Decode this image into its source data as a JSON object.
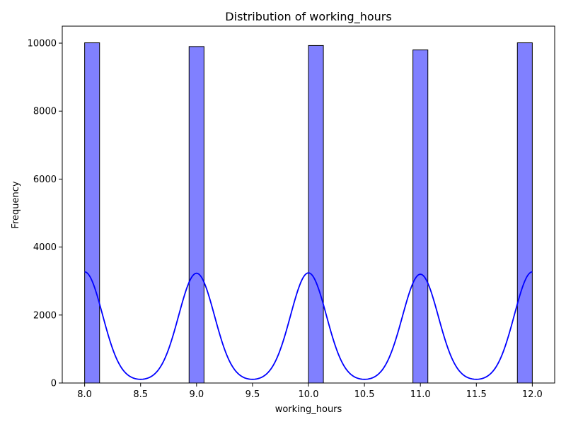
{
  "chart_data": {
    "type": "bar",
    "subtype": "histogram_with_kde",
    "title": "Distribution of working_hours",
    "xlabel": "working_hours",
    "ylabel": "Frequency",
    "xlim": [
      7.8,
      12.2
    ],
    "ylim": [
      0,
      10500
    ],
    "xticks": [
      8.0,
      8.5,
      9.0,
      9.5,
      10.0,
      10.5,
      11.0,
      11.5,
      12.0
    ],
    "xtick_labels": [
      "8.0",
      "8.5",
      "9.0",
      "9.5",
      "10.0",
      "10.5",
      "11.0",
      "11.5",
      "12.0"
    ],
    "yticks": [
      0,
      2000,
      4000,
      6000,
      8000,
      10000
    ],
    "ytick_labels": [
      "0",
      "2000",
      "4000",
      "6000",
      "8000",
      "10000"
    ],
    "bins": [
      {
        "x_start": 8.0,
        "x_end": 8.1333,
        "count": 10010
      },
      {
        "x_start": 8.9333,
        "x_end": 9.0667,
        "count": 9900
      },
      {
        "x_start": 10.0,
        "x_end": 10.1333,
        "count": 9930
      },
      {
        "x_start": 10.9333,
        "x_end": 11.0667,
        "count": 9800
      },
      {
        "x_start": 11.8667,
        "x_end": 12.0,
        "count": 10010
      }
    ],
    "kde": {
      "peaks": [
        {
          "x": 8.0,
          "y": 3270
        },
        {
          "x": 9.0,
          "y": 3230
        },
        {
          "x": 10.0,
          "y": 3240
        },
        {
          "x": 11.0,
          "y": 3200
        },
        {
          "x": 12.0,
          "y": 3270
        }
      ],
      "baseline": 60,
      "sigma": 0.16
    },
    "grid": false,
    "colors": {
      "bar_fill": "#8080ff",
      "bar_edge": "#000000",
      "kde_line": "#0000ff"
    }
  }
}
